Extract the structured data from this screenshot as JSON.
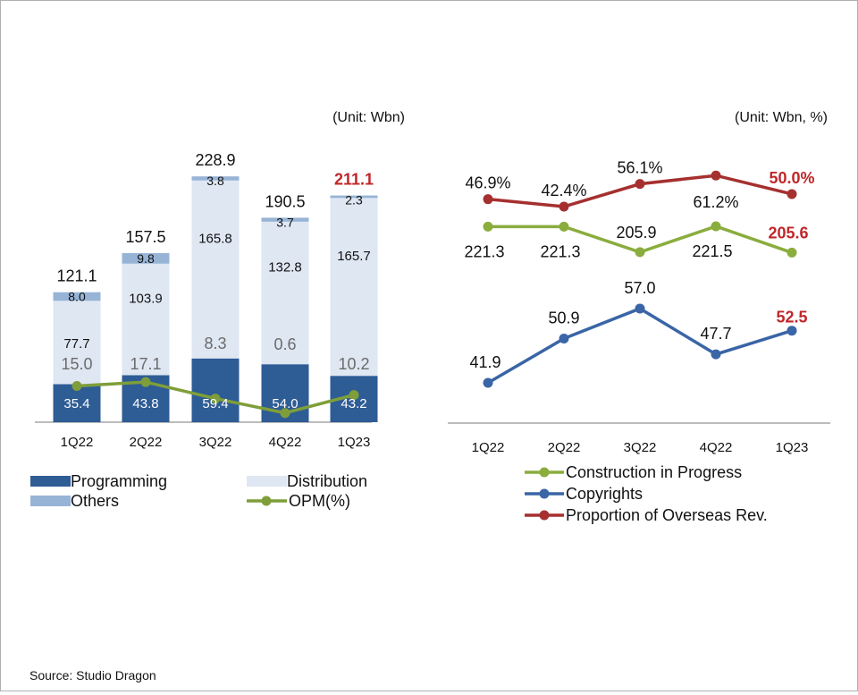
{
  "source": "Source: Studio Dragon",
  "colors": {
    "programming": "#2e5c95",
    "distribution": "#dfe7f3",
    "others": "#97b4d6",
    "opm": "#7f9e3a",
    "construction": "#8aad3e",
    "copyrights": "#3a65a6",
    "overseas": "#a5302f",
    "highlight": "#c0262a"
  },
  "chart_data": [
    {
      "type": "bar",
      "unit": "(Unit:  Wbn)",
      "categories": [
        "1Q22",
        "2Q22",
        "3Q22",
        "4Q22",
        "1Q23"
      ],
      "totals": [
        "121.1",
        "157.5",
        "228.9",
        "190.5",
        "211.1"
      ],
      "series": [
        {
          "name": "Programming",
          "values": [
            35.4,
            43.8,
            59.4,
            54.0,
            43.2
          ],
          "labels": [
            "35.4",
            "43.8",
            "59.4",
            "54.0",
            "43.2"
          ]
        },
        {
          "name": "Distribution",
          "values": [
            77.7,
            103.9,
            165.8,
            132.8,
            165.7
          ],
          "labels": [
            "77.7",
            "103.9",
            "165.8",
            "132.8",
            "165.7"
          ]
        },
        {
          "name": "Others",
          "values": [
            8.0,
            9.8,
            3.8,
            3.7,
            2.3
          ],
          "labels": [
            "8.0",
            "9.8",
            "3.8",
            "3.7",
            "2.3"
          ]
        },
        {
          "name": "OPM(%)",
          "type": "line",
          "values": [
            15.0,
            17.1,
            8.3,
            0.6,
            10.2
          ],
          "labels": [
            "15.0",
            "17.1",
            "8.3",
            "0.6",
            "10.2"
          ]
        }
      ],
      "ylim": [
        0,
        240
      ]
    },
    {
      "type": "line",
      "unit": "(Unit: Wbn, %)",
      "categories": [
        "1Q22",
        "2Q22",
        "3Q22",
        "4Q22",
        "1Q23"
      ],
      "series": [
        {
          "name": "Construction in Progress",
          "values": [
            221.3,
            221.3,
            205.9,
            221.5,
            205.6
          ],
          "labels": [
            "221.3",
            "221.3",
            "205.9",
            "221.5",
            "205.6"
          ]
        },
        {
          "name": "Copyrights",
          "values": [
            41.9,
            50.9,
            57.0,
            47.7,
            52.5
          ],
          "labels": [
            "41.9",
            "50.9",
            "57.0",
            "47.7",
            "52.5"
          ]
        },
        {
          "name": "Proportion of Overseas Rev.",
          "values": [
            46.9,
            42.4,
            56.1,
            61.2,
            50.0
          ],
          "labels": [
            "46.9%",
            "42.4%",
            "56.1%",
            "61.2%",
            "50.0%"
          ]
        }
      ]
    }
  ]
}
